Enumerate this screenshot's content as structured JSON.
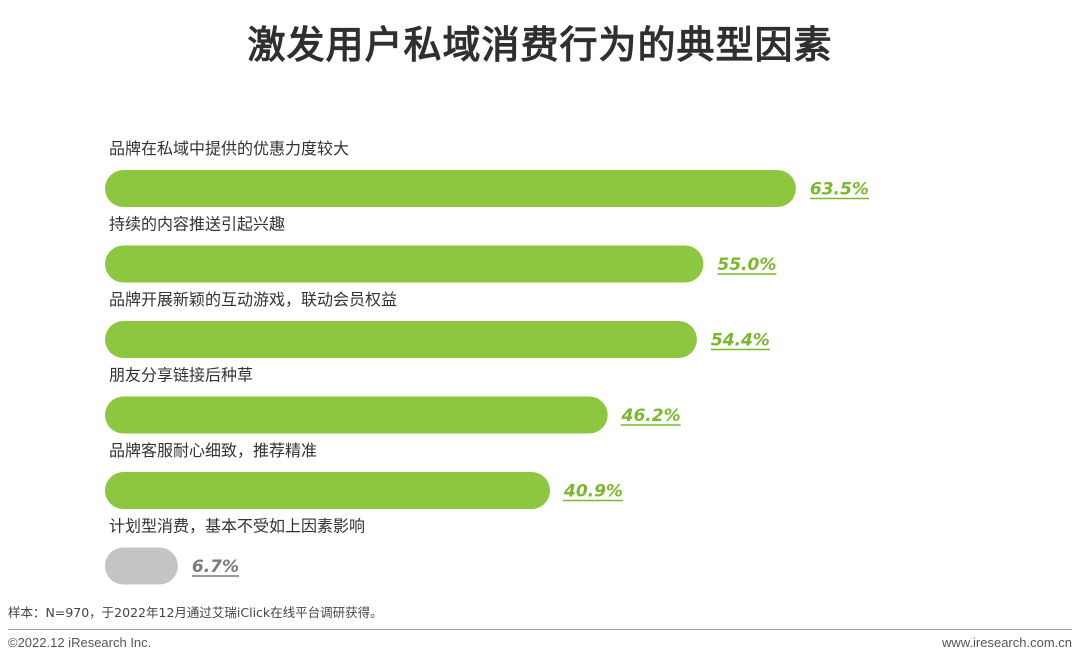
{
  "title": "激发用户私域消费行为的典型因素",
  "chart_data": {
    "type": "bar",
    "orientation": "horizontal",
    "categories": [
      "品牌在私域中提供的优惠力度较大",
      "持续的内容推送引起兴趣",
      "品牌开展新颖的互动游戏，联动会员权益",
      "朋友分享链接后种草",
      "品牌客服耐心细致，推荐精准",
      "计划型消费，基本不受如上因素影响"
    ],
    "values": [
      63.5,
      55.0,
      54.4,
      46.2,
      40.9,
      6.7
    ],
    "value_labels": [
      "63.5%",
      "55.0%",
      "54.4%",
      "46.2%",
      "40.9%",
      "6.7%"
    ],
    "unit": "%",
    "colors": [
      "#8dc63f",
      "#8dc63f",
      "#8dc63f",
      "#8dc63f",
      "#8dc63f",
      "#c4c4c4"
    ],
    "label_colors": [
      "#7ab82e",
      "#7ab82e",
      "#7ab82e",
      "#7ab82e",
      "#7ab82e",
      "#7a7a7a"
    ],
    "grid": false,
    "legend": "none"
  },
  "note": "样本：N=970，于2022年12月通过艾瑞iClick在线平台调研获得。",
  "footer": {
    "left": "©2022.12 iResearch Inc.",
    "right": "www.iresearch.com.cn"
  }
}
